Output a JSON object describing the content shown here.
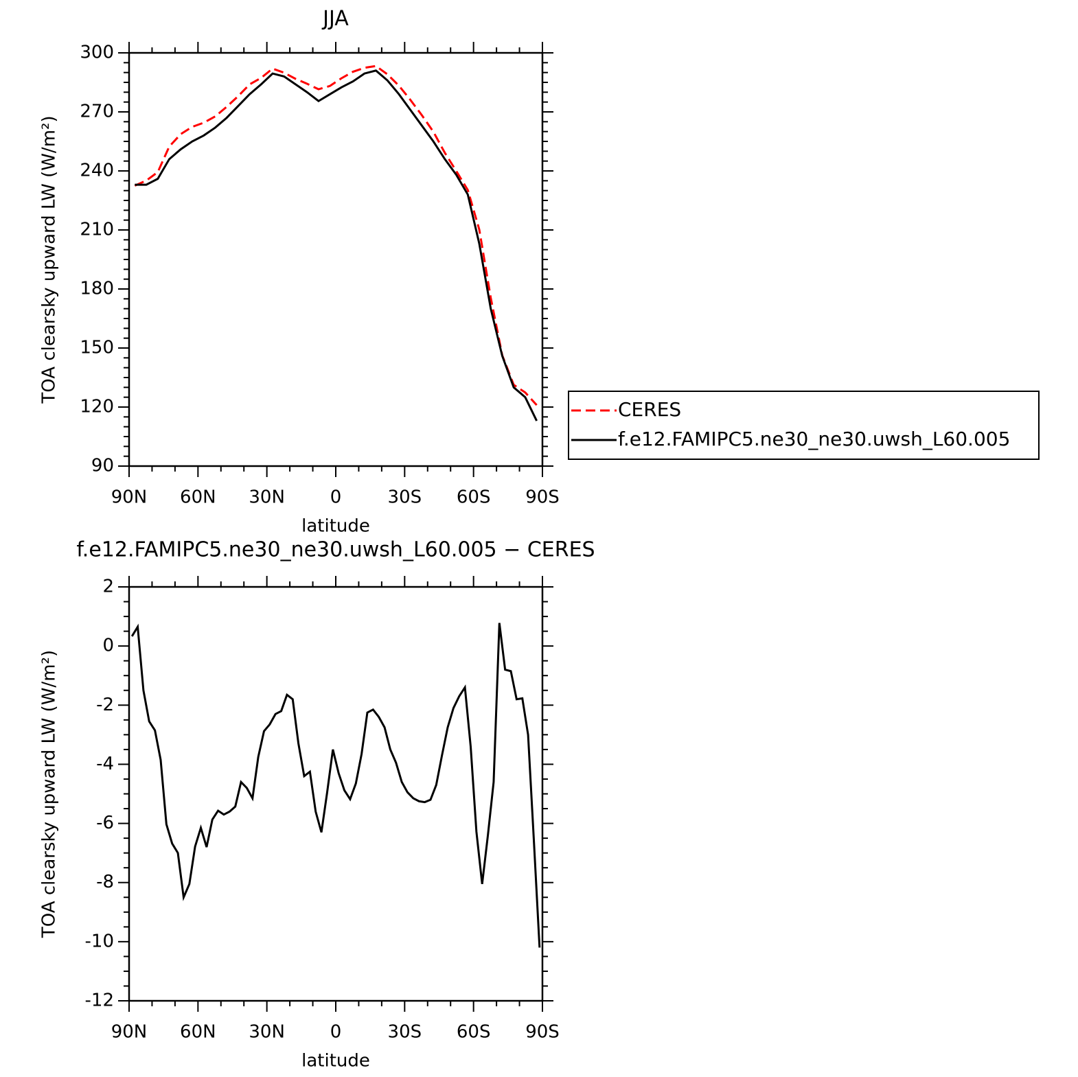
{
  "chart_data": [
    {
      "type": "line",
      "title": "JJA",
      "xlabel": "latitude",
      "ylabel": "TOA clearsky upward LW (W/m²)",
      "x": [
        87.5,
        82.5,
        77.5,
        72.5,
        67.5,
        62.5,
        57.5,
        52.5,
        47.5,
        42.5,
        37.5,
        32.5,
        27.5,
        22.5,
        17.5,
        12.5,
        7.5,
        2.5,
        -2.5,
        -7.5,
        -12.5,
        -17.5,
        -22.5,
        -27.5,
        -32.5,
        -37.5,
        -42.5,
        -47.5,
        -52.5,
        -57.5,
        -62.5,
        -67.5,
        -72.5,
        -77.5,
        -82.5,
        -87.5
      ],
      "xlim": [
        90,
        -90
      ],
      "xticks": [
        {
          "value": 90,
          "label": "90N"
        },
        {
          "value": 60,
          "label": "60N"
        },
        {
          "value": 30,
          "label": "30N"
        },
        0,
        {
          "value": -30,
          "label": "30S"
        },
        {
          "value": -60,
          "label": "60S"
        },
        {
          "value": -90,
          "label": "90S"
        }
      ],
      "ylim": [
        90,
        300
      ],
      "yticks": [
        90,
        120,
        150,
        180,
        210,
        240,
        270,
        300
      ],
      "legend": "right",
      "series": [
        {
          "name": "CERES",
          "color": "#ff0000",
          "linestyle": "dashed",
          "values": [
            232.5,
            235.1,
            239.4,
            252.4,
            258.7,
            262.4,
            264.5,
            267.7,
            272.6,
            278,
            284,
            287.3,
            292,
            289.9,
            286.8,
            284.3,
            281.5,
            283.2,
            287.1,
            290.4,
            292.4,
            293.3,
            289.1,
            283.3,
            276.1,
            268.3,
            259.9,
            249.2,
            239.9,
            230.3,
            210.2,
            175.5,
            146.3,
            131.3,
            127.4,
            121
          ]
        },
        {
          "name": "f.e12.FAMIPC5.ne30_ne30.uwsh_L60.005",
          "color": "#000000",
          "linestyle": "solid",
          "values": [
            233,
            233,
            236,
            246,
            251,
            255,
            258,
            262,
            267,
            273,
            279,
            284,
            289.5,
            288,
            284,
            280,
            275.5,
            279,
            282.5,
            285.5,
            289.5,
            291,
            286,
            279,
            271,
            263,
            255,
            246,
            238,
            228,
            203,
            170,
            146,
            130,
            125,
            113
          ]
        }
      ]
    },
    {
      "type": "line",
      "title": "f.e12.FAMIPC5.ne30_ne30.uwsh_L60.005 − CERES",
      "xlabel": "latitude",
      "ylabel": "TOA clearsky upward LW (W/m²)",
      "x": [
        88.75,
        86.25,
        83.75,
        81.25,
        78.75,
        76.25,
        73.75,
        71.25,
        68.75,
        66.25,
        63.75,
        61.25,
        58.75,
        56.25,
        53.75,
        51.25,
        48.75,
        46.25,
        43.75,
        41.25,
        38.75,
        36.25,
        33.75,
        31.25,
        28.75,
        26.25,
        23.75,
        21.25,
        18.75,
        16.25,
        13.75,
        11.25,
        8.75,
        6.25,
        3.75,
        1.25,
        -1.25,
        -3.75,
        -6.25,
        -8.75,
        -11.25,
        -13.75,
        -16.25,
        -18.75,
        -21.25,
        -23.75,
        -26.25,
        -28.75,
        -31.25,
        -33.75,
        -36.25,
        -38.75,
        -41.25,
        -43.75,
        -46.25,
        -48.75,
        -51.25,
        -53.75,
        -56.25,
        -58.75,
        -61.25,
        -63.75,
        -66.25,
        -68.75,
        -71.25,
        -73.75,
        -76.25,
        -78.75,
        -81.25,
        -83.75,
        -86.25,
        -88.75
      ],
      "xlim": [
        90,
        -90
      ],
      "xticks": [
        {
          "value": 90,
          "label": "90N"
        },
        {
          "value": 60,
          "label": "60N"
        },
        {
          "value": 30,
          "label": "30N"
        },
        0,
        {
          "value": -30,
          "label": "30S"
        },
        {
          "value": -60,
          "label": "60S"
        },
        {
          "value": -90,
          "label": "90S"
        }
      ],
      "ylim": [
        -12,
        2
      ],
      "yticks": [
        -12,
        -10,
        -8,
        -6,
        -4,
        -2,
        0,
        2
      ],
      "series": [
        {
          "color": "#000000",
          "linestyle": "solid",
          "values": [
            0.33,
            0.65,
            -1.5,
            -2.55,
            -2.85,
            -3.85,
            -6.03,
            -6.68,
            -7.0,
            -8.5,
            -8.05,
            -6.78,
            -6.15,
            -6.8,
            -5.87,
            -5.57,
            -5.7,
            -5.6,
            -5.43,
            -4.6,
            -4.8,
            -5.15,
            -3.75,
            -2.88,
            -2.65,
            -2.3,
            -2.2,
            -1.65,
            -1.8,
            -3.3,
            -4.4,
            -4.25,
            -5.6,
            -6.3,
            -4.95,
            -3.5,
            -4.3,
            -4.88,
            -5.18,
            -4.65,
            -3.65,
            -2.25,
            -2.15,
            -2.4,
            -2.75,
            -3.5,
            -3.95,
            -4.6,
            -4.95,
            -5.15,
            -5.25,
            -5.28,
            -5.2,
            -4.7,
            -3.7,
            -2.75,
            -2.1,
            -1.7,
            -1.4,
            -3.4,
            -6.28,
            -8.05,
            -6.4,
            -4.6,
            0.78,
            -0.8,
            -0.85,
            -1.8,
            -1.77,
            -3.0,
            -6.55,
            -10.2
          ]
        }
      ]
    }
  ]
}
